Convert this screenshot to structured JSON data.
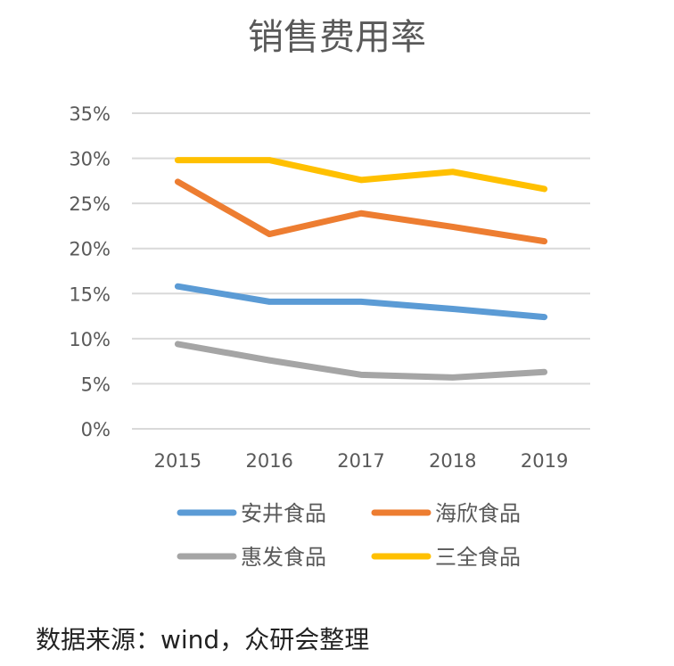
{
  "chart_data": {
    "type": "line",
    "title": "销售费用率",
    "xlabel": "",
    "ylabel": "",
    "categories": [
      "2015",
      "2016",
      "2017",
      "2018",
      "2019"
    ],
    "ylim": [
      0,
      35
    ],
    "yticks": [
      "0%",
      "5%",
      "10%",
      "15%",
      "20%",
      "25%",
      "30%",
      "35%"
    ],
    "grid": true,
    "legend_position": "bottom",
    "series": [
      {
        "name": "安井食品",
        "color": "#5B9BD5",
        "values": [
          15.8,
          14.1,
          14.1,
          13.3,
          12.4
        ]
      },
      {
        "name": "海欣食品",
        "color": "#ED7D31",
        "values": [
          27.4,
          21.6,
          23.9,
          22.4,
          20.8
        ]
      },
      {
        "name": "惠发食品",
        "color": "#A5A5A5",
        "values": [
          9.4,
          7.6,
          6.0,
          5.7,
          6.3
        ]
      },
      {
        "name": "三全食品",
        "color": "#FFC000",
        "values": [
          29.8,
          29.8,
          27.6,
          28.5,
          26.6
        ]
      }
    ]
  },
  "source_note": "数据来源：wind，众研会整理"
}
